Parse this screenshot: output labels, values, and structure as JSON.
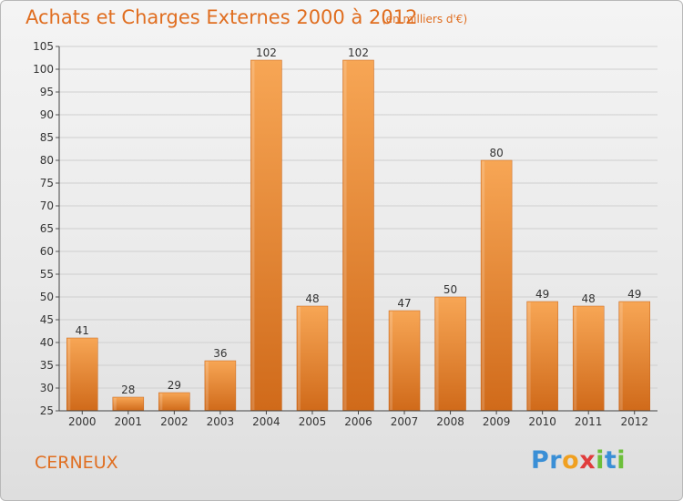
{
  "header": {
    "title": "Achats et Charges Externes 2000 à 2012",
    "subtitle": "(en milliers d'€)"
  },
  "footer": {
    "commune": "CERNEUX",
    "logo_letters": [
      {
        "char": "P",
        "color": "#3a8fd6"
      },
      {
        "char": "r",
        "color": "#3a8fd6"
      },
      {
        "char": "o",
        "color": "#f0a020"
      },
      {
        "char": "x",
        "color": "#e03c3c"
      },
      {
        "char": "i",
        "color": "#6cbf3a"
      },
      {
        "char": "t",
        "color": "#3a8fd6"
      },
      {
        "char": "i",
        "color": "#6cbf3a"
      }
    ]
  },
  "colors": {
    "accent": "#e06e20",
    "bar_top": "#f7a655",
    "bar_bottom": "#d06a1a"
  },
  "chart_data": {
    "type": "bar",
    "title": "Achats et Charges Externes 2000 à 2012",
    "subtitle": "(en milliers d'€)",
    "categories": [
      "2000",
      "2001",
      "2002",
      "2003",
      "2004",
      "2005",
      "2006",
      "2007",
      "2008",
      "2009",
      "2010",
      "2011",
      "2012"
    ],
    "values": [
      41,
      28,
      29,
      36,
      102,
      48,
      102,
      47,
      50,
      80,
      49,
      48,
      49
    ],
    "ylim": [
      25,
      105
    ],
    "yticks": [
      25,
      30,
      35,
      40,
      45,
      50,
      55,
      60,
      65,
      70,
      75,
      80,
      85,
      90,
      95,
      100,
      105
    ],
    "grid": true,
    "xlabel": "",
    "ylabel": ""
  }
}
